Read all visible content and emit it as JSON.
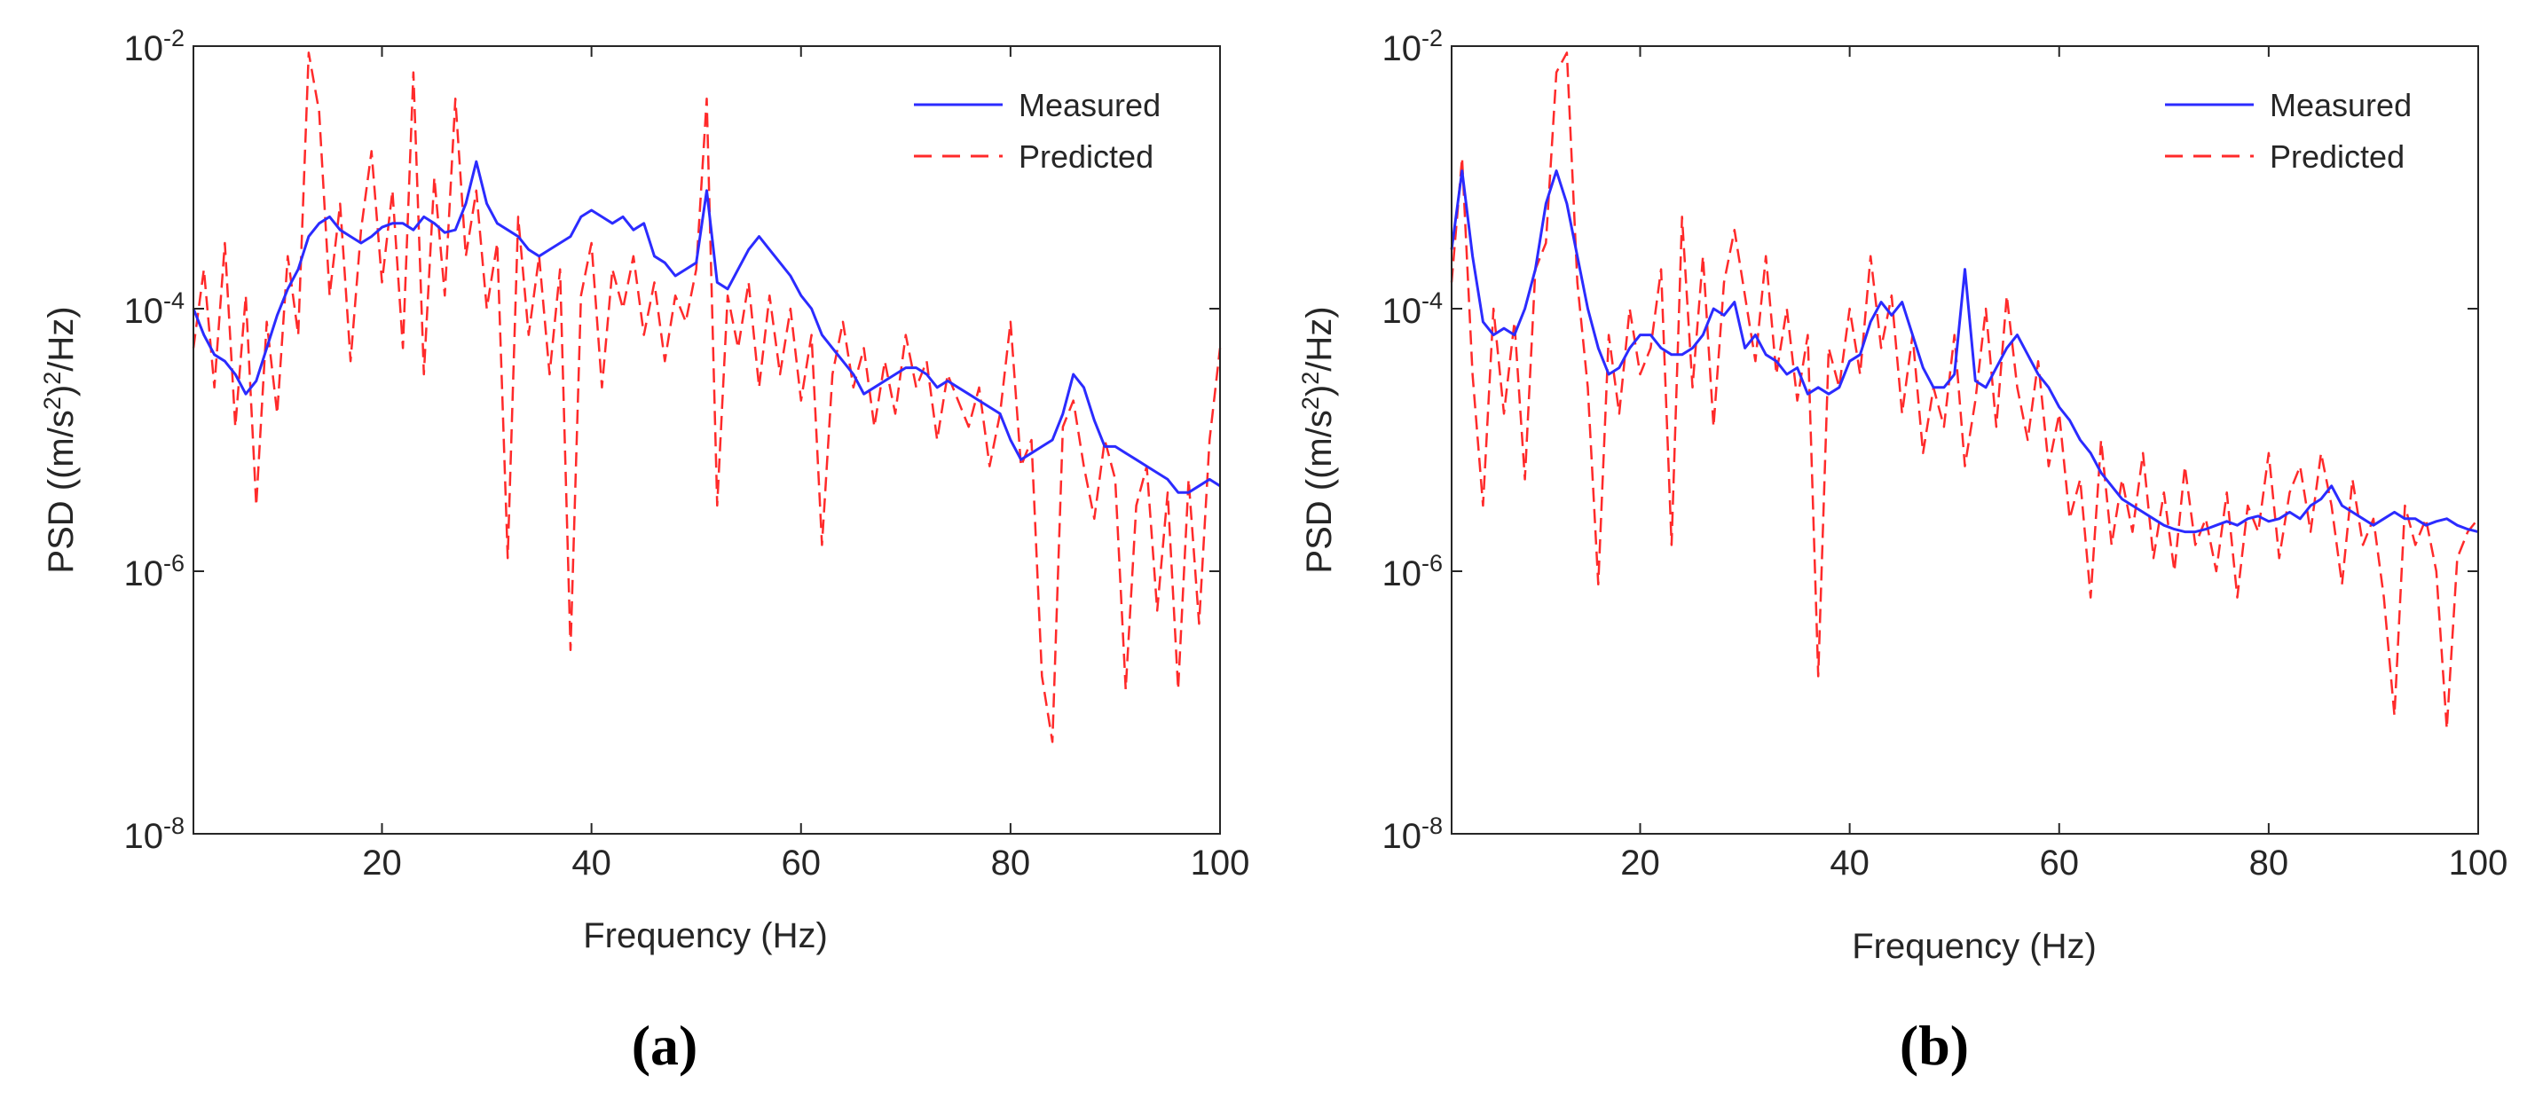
{
  "colors": {
    "measured": "#2b2bff",
    "predicted": "#ff2a2a",
    "axis": "#262626"
  },
  "chart_data": [
    {
      "id": "a",
      "type": "line",
      "caption": "(a)",
      "xlabel": "Frequency (Hz)",
      "ylabel": "PSD  ((m/s2)2/Hz)",
      "ylabel_parts": {
        "lead": "PSD  ((m/s",
        "sup1": "2",
        "mid": ")",
        "sup2": "2",
        "tail": "/Hz)"
      },
      "yscale": "log",
      "xlim": [
        2,
        100
      ],
      "ylim_exp": [
        -8,
        -2
      ],
      "xticks": [
        20,
        40,
        60,
        80,
        100
      ],
      "xtick_labels": [
        "20",
        "40",
        "60",
        "80",
        "100"
      ],
      "yticks_exp": [
        -8,
        -6,
        -4,
        -2
      ],
      "ytick_labels": [
        {
          "base": "10",
          "exp": "-8"
        },
        {
          "base": "10",
          "exp": "-6"
        },
        {
          "base": "10",
          "exp": "-4"
        },
        {
          "base": "10",
          "exp": "-2"
        }
      ],
      "legend": {
        "position": "top-right",
        "entries": [
          "Measured",
          "Predicted"
        ]
      },
      "series": [
        {
          "name": "Measured",
          "style": "solid",
          "x": [
            2,
            3,
            4,
            5,
            6,
            7,
            8,
            9,
            10,
            11,
            12,
            13,
            14,
            15,
            16,
            17,
            18,
            19,
            20,
            21,
            22,
            23,
            24,
            25,
            26,
            27,
            28,
            29,
            30,
            31,
            32,
            33,
            34,
            35,
            36,
            37,
            38,
            39,
            40,
            41,
            42,
            43,
            44,
            45,
            46,
            47,
            48,
            49,
            50,
            51,
            52,
            53,
            54,
            55,
            56,
            57,
            58,
            59,
            60,
            61,
            62,
            63,
            64,
            65,
            66,
            67,
            68,
            69,
            70,
            71,
            72,
            73,
            74,
            75,
            76,
            77,
            78,
            79,
            80,
            81,
            82,
            83,
            84,
            85,
            86,
            87,
            88,
            89,
            90,
            91,
            92,
            93,
            94,
            95,
            96,
            97,
            98,
            99,
            100
          ],
          "y_log10": [
            -4.0,
            -4.2,
            -4.35,
            -4.4,
            -4.5,
            -4.65,
            -4.55,
            -4.3,
            -4.05,
            -3.85,
            -3.7,
            -3.45,
            -3.35,
            -3.3,
            -3.4,
            -3.45,
            -3.5,
            -3.45,
            -3.38,
            -3.35,
            -3.35,
            -3.4,
            -3.3,
            -3.35,
            -3.42,
            -3.4,
            -3.2,
            -2.88,
            -3.2,
            -3.35,
            -3.4,
            -3.45,
            -3.55,
            -3.6,
            -3.55,
            -3.5,
            -3.45,
            -3.3,
            -3.25,
            -3.3,
            -3.35,
            -3.3,
            -3.4,
            -3.35,
            -3.6,
            -3.65,
            -3.75,
            -3.7,
            -3.65,
            -3.1,
            -3.8,
            -3.85,
            -3.7,
            -3.55,
            -3.45,
            -3.55,
            -3.65,
            -3.75,
            -3.9,
            -4.0,
            -4.2,
            -4.3,
            -4.4,
            -4.5,
            -4.65,
            -4.6,
            -4.55,
            -4.5,
            -4.45,
            -4.45,
            -4.5,
            -4.6,
            -4.55,
            -4.6,
            -4.65,
            -4.7,
            -4.75,
            -4.8,
            -5.0,
            -5.15,
            -5.1,
            -5.05,
            -5.0,
            -4.8,
            -4.5,
            -4.6,
            -4.85,
            -5.05,
            -5.05,
            -5.1,
            -5.15,
            -5.2,
            -5.25,
            -5.3,
            -5.4,
            -5.4,
            -5.35,
            -5.3,
            -5.35
          ]
        },
        {
          "name": "Predicted",
          "style": "dashed",
          "x": [
            2,
            3,
            4,
            5,
            6,
            7,
            8,
            9,
            10,
            11,
            12,
            13,
            14,
            15,
            16,
            17,
            18,
            19,
            20,
            21,
            22,
            23,
            24,
            25,
            26,
            27,
            28,
            29,
            30,
            31,
            32,
            33,
            34,
            35,
            36,
            37,
            38,
            39,
            40,
            41,
            42,
            43,
            44,
            45,
            46,
            47,
            48,
            49,
            50,
            51,
            52,
            53,
            54,
            55,
            56,
            57,
            58,
            59,
            60,
            61,
            62,
            63,
            64,
            65,
            66,
            67,
            68,
            69,
            70,
            71,
            72,
            73,
            74,
            75,
            76,
            77,
            78,
            79,
            80,
            81,
            82,
            83,
            84,
            85,
            86,
            87,
            88,
            89,
            90,
            91,
            92,
            93,
            94,
            95,
            96,
            97,
            98,
            99,
            100
          ],
          "y_log10": [
            -4.3,
            -3.7,
            -4.6,
            -3.5,
            -4.9,
            -3.9,
            -5.5,
            -4.1,
            -4.8,
            -3.6,
            -4.2,
            -2.05,
            -2.5,
            -3.9,
            -3.2,
            -4.4,
            -3.4,
            -2.8,
            -3.8,
            -3.1,
            -4.3,
            -2.2,
            -4.5,
            -3.0,
            -3.9,
            -2.4,
            -3.6,
            -3.1,
            -4.0,
            -3.5,
            -5.9,
            -3.3,
            -4.2,
            -3.6,
            -4.5,
            -3.7,
            -6.6,
            -3.9,
            -3.5,
            -4.6,
            -3.7,
            -4.0,
            -3.6,
            -4.2,
            -3.8,
            -4.4,
            -3.9,
            -4.1,
            -3.7,
            -2.4,
            -5.5,
            -3.9,
            -4.3,
            -3.8,
            -4.6,
            -3.9,
            -4.5,
            -4.0,
            -4.7,
            -4.2,
            -5.8,
            -4.5,
            -4.1,
            -4.6,
            -4.3,
            -4.9,
            -4.4,
            -4.8,
            -4.2,
            -4.6,
            -4.4,
            -5.0,
            -4.5,
            -4.7,
            -4.9,
            -4.6,
            -5.2,
            -4.8,
            -4.1,
            -5.2,
            -5.0,
            -6.8,
            -7.3,
            -4.9,
            -4.7,
            -5.2,
            -5.6,
            -5.0,
            -5.3,
            -6.9,
            -5.5,
            -5.2,
            -6.3,
            -5.4,
            -6.9,
            -5.3,
            -6.4,
            -5.0,
            -4.3
          ]
        }
      ]
    },
    {
      "id": "b",
      "type": "line",
      "caption": "(b)",
      "xlabel": "Frequency (Hz)",
      "ylabel": "PSD  ((m/s2)2/Hz)",
      "ylabel_parts": {
        "lead": "PSD  ((m/s",
        "sup1": "2",
        "mid": ")",
        "sup2": "2",
        "tail": "/Hz)"
      },
      "yscale": "log",
      "xlim": [
        2,
        100
      ],
      "ylim_exp": [
        -8,
        -2
      ],
      "xticks": [
        20,
        40,
        60,
        80,
        100
      ],
      "xtick_labels": [
        "20",
        "40",
        "60",
        "80",
        "100"
      ],
      "yticks_exp": [
        -8,
        -6,
        -4,
        -2
      ],
      "ytick_labels": [
        {
          "base": "10",
          "exp": "-8"
        },
        {
          "base": "10",
          "exp": "-6"
        },
        {
          "base": "10",
          "exp": "-4"
        },
        {
          "base": "10",
          "exp": "-2"
        }
      ],
      "legend": {
        "position": "top-right",
        "entries": [
          "Measured",
          "Predicted"
        ]
      },
      "series": [
        {
          "name": "Measured",
          "style": "solid",
          "x": [
            2,
            3,
            4,
            5,
            6,
            7,
            8,
            9,
            10,
            11,
            12,
            13,
            14,
            15,
            16,
            17,
            18,
            19,
            20,
            21,
            22,
            23,
            24,
            25,
            26,
            27,
            28,
            29,
            30,
            31,
            32,
            33,
            34,
            35,
            36,
            37,
            38,
            39,
            40,
            41,
            42,
            43,
            44,
            45,
            46,
            47,
            48,
            49,
            50,
            51,
            52,
            53,
            54,
            55,
            56,
            57,
            58,
            59,
            60,
            61,
            62,
            63,
            64,
            65,
            66,
            67,
            68,
            69,
            70,
            71,
            72,
            73,
            74,
            75,
            76,
            77,
            78,
            79,
            80,
            81,
            82,
            83,
            84,
            85,
            86,
            87,
            88,
            89,
            90,
            91,
            92,
            93,
            94,
            95,
            96,
            97,
            98,
            99,
            100
          ],
          "y_log10": [
            -3.55,
            -2.95,
            -3.6,
            -4.1,
            -4.2,
            -4.15,
            -4.2,
            -4.0,
            -3.7,
            -3.2,
            -2.95,
            -3.2,
            -3.6,
            -4.0,
            -4.3,
            -4.5,
            -4.45,
            -4.3,
            -4.2,
            -4.2,
            -4.3,
            -4.35,
            -4.35,
            -4.3,
            -4.2,
            -4.0,
            -4.05,
            -3.95,
            -4.3,
            -4.2,
            -4.35,
            -4.4,
            -4.5,
            -4.45,
            -4.65,
            -4.6,
            -4.65,
            -4.6,
            -4.4,
            -4.35,
            -4.1,
            -3.95,
            -4.05,
            -3.95,
            -4.2,
            -4.45,
            -4.6,
            -4.6,
            -4.5,
            -3.7,
            -4.55,
            -4.6,
            -4.45,
            -4.3,
            -4.2,
            -4.35,
            -4.5,
            -4.6,
            -4.75,
            -4.85,
            -5.0,
            -5.1,
            -5.25,
            -5.35,
            -5.45,
            -5.5,
            -5.55,
            -5.6,
            -5.65,
            -5.68,
            -5.7,
            -5.7,
            -5.68,
            -5.65,
            -5.62,
            -5.65,
            -5.6,
            -5.58,
            -5.62,
            -5.6,
            -5.55,
            -5.6,
            -5.5,
            -5.45,
            -5.35,
            -5.5,
            -5.55,
            -5.6,
            -5.65,
            -5.6,
            -5.55,
            -5.6,
            -5.6,
            -5.65,
            -5.62,
            -5.6,
            -5.65,
            -5.68,
            -5.7
          ]
        },
        {
          "name": "Predicted",
          "style": "dashed",
          "x": [
            2,
            3,
            4,
            5,
            6,
            7,
            8,
            9,
            10,
            11,
            12,
            13,
            14,
            15,
            16,
            17,
            18,
            19,
            20,
            21,
            22,
            23,
            24,
            25,
            26,
            27,
            28,
            29,
            30,
            31,
            32,
            33,
            34,
            35,
            36,
            37,
            38,
            39,
            40,
            41,
            42,
            43,
            44,
            45,
            46,
            47,
            48,
            49,
            50,
            51,
            52,
            53,
            54,
            55,
            56,
            57,
            58,
            59,
            60,
            61,
            62,
            63,
            64,
            65,
            66,
            67,
            68,
            69,
            70,
            71,
            72,
            73,
            74,
            75,
            76,
            77,
            78,
            79,
            80,
            81,
            82,
            83,
            84,
            85,
            86,
            87,
            88,
            89,
            90,
            91,
            92,
            93,
            94,
            95,
            96,
            97,
            98,
            99,
            100
          ],
          "y_log10": [
            -3.8,
            -2.85,
            -4.5,
            -5.5,
            -4.0,
            -4.8,
            -4.1,
            -5.3,
            -3.7,
            -3.5,
            -2.2,
            -2.05,
            -3.8,
            -4.6,
            -6.1,
            -4.2,
            -4.8,
            -4.0,
            -4.5,
            -4.3,
            -3.7,
            -5.8,
            -3.3,
            -4.6,
            -3.6,
            -4.9,
            -3.8,
            -3.4,
            -3.9,
            -4.4,
            -3.6,
            -4.5,
            -4.0,
            -4.7,
            -4.2,
            -6.8,
            -4.3,
            -4.6,
            -4.0,
            -4.5,
            -3.6,
            -4.3,
            -3.9,
            -4.8,
            -4.2,
            -5.1,
            -4.6,
            -4.9,
            -4.2,
            -5.2,
            -4.7,
            -4.0,
            -4.9,
            -3.9,
            -4.6,
            -5.0,
            -4.4,
            -5.2,
            -4.8,
            -5.6,
            -5.3,
            -6.2,
            -5.0,
            -5.8,
            -5.3,
            -5.7,
            -5.1,
            -5.9,
            -5.4,
            -6.0,
            -5.2,
            -5.8,
            -5.6,
            -6.0,
            -5.4,
            -6.2,
            -5.5,
            -5.7,
            -5.1,
            -5.9,
            -5.4,
            -5.2,
            -5.7,
            -5.1,
            -5.5,
            -6.1,
            -5.3,
            -5.8,
            -5.6,
            -6.2,
            -7.1,
            -5.5,
            -5.8,
            -5.6,
            -6.0,
            -7.2,
            -5.9,
            -5.7,
            -5.6
          ]
        }
      ]
    }
  ]
}
